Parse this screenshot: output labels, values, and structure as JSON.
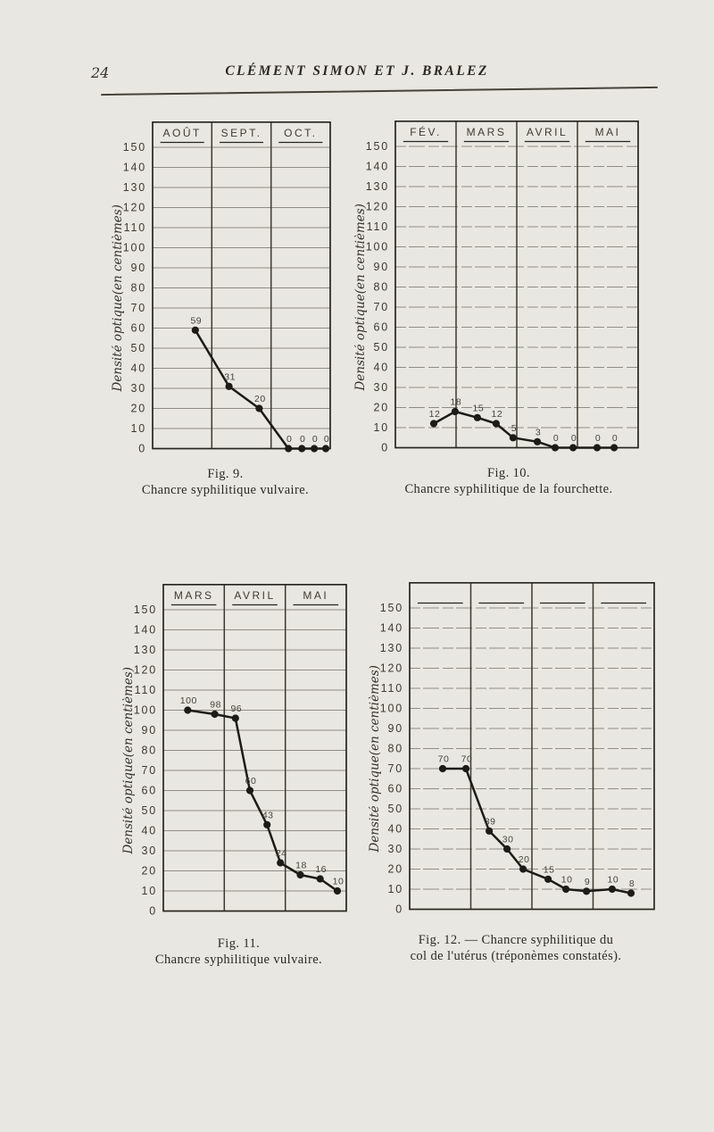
{
  "page": {
    "page_number": "24",
    "header_title": "CLÉMENT SIMON ET J. BRALEZ"
  },
  "axis": {
    "ylabel": "Densité optique(en centièmes)",
    "ymin": 0,
    "ymax": 150,
    "ystep": 10
  },
  "chart_data": [
    {
      "id": "fig9",
      "type": "line",
      "title": "Fig. 9. Chancre syphilitique vulvaire.",
      "caption1": "Fig. 9.",
      "caption2": "Chancre syphilitique vulvaire.",
      "months": [
        "AOÛT",
        "SEPT.",
        "OCT."
      ],
      "xlabel": "",
      "ylabel": "Densité optique(en centièmes)",
      "ylim": [
        0,
        150
      ],
      "ystep": 10,
      "grid": true,
      "values": [
        59,
        31,
        20,
        0,
        0,
        0,
        0
      ],
      "points": [
        {
          "x": 0.24,
          "v": 59
        },
        {
          "x": 0.43,
          "v": 31
        },
        {
          "x": 0.6,
          "v": 20
        },
        {
          "x": 0.765,
          "v": 0
        },
        {
          "x": 0.84,
          "v": 0
        },
        {
          "x": 0.91,
          "v": 0
        },
        {
          "x": 0.975,
          "v": 0
        }
      ]
    },
    {
      "id": "fig10",
      "type": "line",
      "title": "Fig. 10. Chancre syphilitique de la fourchette.",
      "caption1": "Fig. 10.",
      "caption2": "Chancre syphilitique de la fourchette.",
      "months": [
        "FÉV.",
        "MARS",
        "AVRIL",
        "MAI"
      ],
      "xlabel": "",
      "ylabel": "Densité optique(en centièmes)",
      "ylim": [
        0,
        150
      ],
      "ystep": 10,
      "grid": true,
      "values": [
        12,
        18,
        15,
        12,
        5,
        3,
        0,
        0,
        0,
        0
      ],
      "points": [
        {
          "x": 0.158,
          "v": 12
        },
        {
          "x": 0.246,
          "v": 18
        },
        {
          "x": 0.338,
          "v": 15
        },
        {
          "x": 0.415,
          "v": 12
        },
        {
          "x": 0.485,
          "v": 5
        },
        {
          "x": 0.585,
          "v": 3
        },
        {
          "x": 0.658,
          "v": 0
        },
        {
          "x": 0.732,
          "v": 0
        },
        {
          "x": 0.831,
          "v": 0
        },
        {
          "x": 0.901,
          "v": 0
        }
      ]
    },
    {
      "id": "fig11",
      "type": "line",
      "title": "Fig. 11. Chancre syphilitique vulvaire.",
      "caption1": "Fig. 11.",
      "caption2": "Chancre syphilitique vulvaire.",
      "months": [
        "MARS",
        "AVRIL",
        "MAI"
      ],
      "xlabel": "",
      "ylabel": "Densité optique(en centièmes)",
      "ylim": [
        0,
        150
      ],
      "ystep": 10,
      "grid": true,
      "values": [
        100,
        98,
        96,
        60,
        43,
        24,
        18,
        16,
        10
      ],
      "points": [
        {
          "x": 0.133,
          "v": 100
        },
        {
          "x": 0.281,
          "v": 98
        },
        {
          "x": 0.394,
          "v": 96
        },
        {
          "x": 0.473,
          "v": 60
        },
        {
          "x": 0.567,
          "v": 43
        },
        {
          "x": 0.64,
          "v": 24
        },
        {
          "x": 0.749,
          "v": 18
        },
        {
          "x": 0.857,
          "v": 16
        },
        {
          "x": 0.951,
          "v": 10
        }
      ]
    },
    {
      "id": "fig12",
      "type": "line",
      "title": "Fig. 12. — Chancre syphilitique du col de l'utérus (tréponèmes constatés).",
      "caption1": "Fig. 12. — Chancre syphilitique du",
      "caption2": "col de l'utérus (tréponèmes constatés).",
      "months": [
        "",
        "",
        "",
        ""
      ],
      "xlabel": "",
      "ylabel": "Densité optique(en centièmes)",
      "ylim": [
        0,
        150
      ],
      "ystep": 10,
      "grid": true,
      "values": [
        70,
        70,
        39,
        30,
        20,
        15,
        10,
        9,
        10,
        8
      ],
      "points": [
        {
          "x": 0.135,
          "v": 70
        },
        {
          "x": 0.23,
          "v": 70
        },
        {
          "x": 0.325,
          "v": 39
        },
        {
          "x": 0.398,
          "v": 30
        },
        {
          "x": 0.464,
          "v": 20
        },
        {
          "x": 0.566,
          "v": 15
        },
        {
          "x": 0.639,
          "v": 10
        },
        {
          "x": 0.723,
          "v": 9
        },
        {
          "x": 0.828,
          "v": 10
        },
        {
          "x": 0.905,
          "v": 8
        }
      ]
    }
  ],
  "colors": {
    "paper_bg": "#e9e7e1",
    "ink": "#26251f",
    "grid": "#8f8d85",
    "separator": "#3a382f",
    "label": "#3c3a32"
  }
}
